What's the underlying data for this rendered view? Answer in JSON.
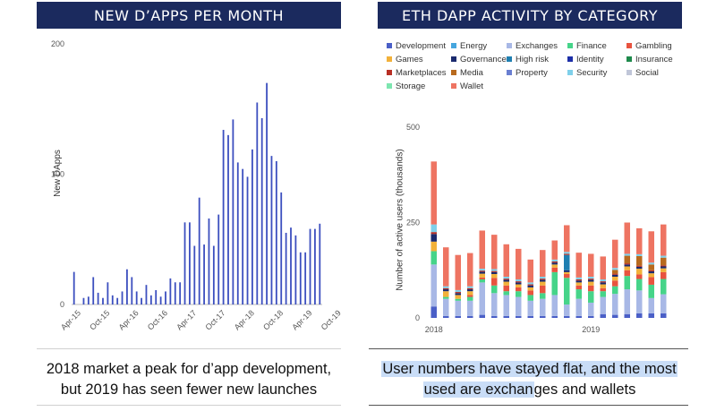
{
  "left_panel": {
    "title": "NEW D’APPS PER MONTH",
    "caption_line1": "2018 market a peak for d’app development,",
    "caption_line2": "but 2019 has seen fewer new launches"
  },
  "right_panel": {
    "title": "ETH DAPP ACTIVITY BY CATEGORY",
    "caption_line1": "User numbers have stayed flat, and the most",
    "caption_line2a": "used are exchan",
    "caption_line2b": "ges and wallets"
  },
  "chart_data": [
    {
      "type": "bar",
      "title": "NEW D’APPS PER MONTH",
      "ylabel": "New DApps",
      "ylim": [
        0,
        200
      ],
      "yticks": [
        0,
        100,
        200
      ],
      "xtick_labels": [
        "Apr-15",
        "Oct-15",
        "Apr-16",
        "Oct-16",
        "Apr-17",
        "Oct-17",
        "Apr-18",
        "Oct-18",
        "Apr-19",
        "Oct-19"
      ],
      "values": [
        25,
        0,
        5,
        6,
        21,
        9,
        5,
        17,
        7,
        5,
        10,
        27,
        21,
        10,
        5,
        15,
        7,
        11,
        6,
        10,
        20,
        17,
        17,
        63,
        63,
        45,
        82,
        46,
        66,
        45,
        69,
        134,
        130,
        142,
        109,
        104,
        98,
        119,
        155,
        143,
        170,
        114,
        110,
        86,
        55,
        59,
        53,
        40,
        40,
        58,
        58,
        62
      ],
      "color": "#3c4fbf"
    },
    {
      "type": "bar",
      "stacked": true,
      "title": "ETH DAPP ACTIVITY BY CATEGORY",
      "ylabel": "Number of active users (thousands)",
      "ylim": [
        0,
        500
      ],
      "yticks": [
        0,
        250,
        500
      ],
      "xtick_labels": [
        "2018",
        "2019"
      ],
      "legend_position": "top",
      "categories_count": 20,
      "series": [
        {
          "name": "Development",
          "color": "#4a5fc7",
          "values": [
            30,
            5,
            5,
            5,
            8,
            5,
            5,
            5,
            5,
            5,
            5,
            5,
            5,
            5,
            10,
            8,
            10,
            12,
            12,
            12
          ]
        },
        {
          "name": "Energy",
          "color": "#46a6de",
          "values": [
            0,
            0,
            0,
            0,
            0,
            0,
            0,
            0,
            0,
            0,
            0,
            0,
            0,
            0,
            0,
            0,
            0,
            0,
            0,
            0
          ]
        },
        {
          "name": "Exchanges",
          "color": "#a8b8e6",
          "values": [
            110,
            45,
            40,
            40,
            85,
            60,
            55,
            50,
            40,
            45,
            55,
            30,
            45,
            35,
            45,
            55,
            65,
            60,
            40,
            50
          ]
        },
        {
          "name": "Finance",
          "color": "#46d489",
          "values": [
            35,
            5,
            5,
            10,
            8,
            20,
            10,
            15,
            15,
            15,
            60,
            70,
            25,
            30,
            15,
            20,
            35,
            30,
            35,
            40
          ]
        },
        {
          "name": "Gambling",
          "color": "#e8533f",
          "values": [
            0,
            0,
            0,
            5,
            5,
            20,
            15,
            10,
            12,
            20,
            12,
            10,
            10,
            15,
            8,
            15,
            15,
            12,
            20,
            18
          ]
        },
        {
          "name": "Games",
          "color": "#f2b13a",
          "values": [
            25,
            15,
            10,
            10,
            10,
            10,
            10,
            8,
            8,
            10,
            8,
            5,
            8,
            10,
            10,
            10,
            10,
            15,
            10,
            10
          ]
        },
        {
          "name": "Governance",
          "color": "#1b2a6e",
          "values": [
            20,
            5,
            5,
            5,
            5,
            5,
            5,
            5,
            5,
            5,
            5,
            5,
            5,
            5,
            5,
            5,
            5,
            5,
            5,
            5
          ]
        },
        {
          "name": "High risk",
          "color": "#1f7fb1",
          "values": [
            0,
            0,
            0,
            0,
            0,
            0,
            0,
            0,
            0,
            0,
            0,
            40,
            0,
            0,
            0,
            0,
            0,
            0,
            0,
            0
          ]
        },
        {
          "name": "Identity",
          "color": "#1d2fa8",
          "values": [
            0,
            0,
            0,
            0,
            0,
            0,
            0,
            0,
            0,
            0,
            0,
            0,
            0,
            0,
            0,
            0,
            0,
            0,
            0,
            0
          ]
        },
        {
          "name": "Insurance",
          "color": "#1f8a4c",
          "values": [
            0,
            0,
            0,
            0,
            0,
            0,
            0,
            0,
            0,
            0,
            0,
            0,
            0,
            0,
            0,
            0,
            0,
            0,
            0,
            0
          ]
        },
        {
          "name": "Marketplaces",
          "color": "#b82f24",
          "values": [
            5,
            3,
            3,
            3,
            3,
            3,
            3,
            3,
            3,
            3,
            3,
            3,
            3,
            3,
            3,
            3,
            3,
            3,
            3,
            3
          ]
        },
        {
          "name": "Media",
          "color": "#b86a1e",
          "values": [
            0,
            0,
            0,
            0,
            0,
            0,
            0,
            0,
            0,
            0,
            0,
            0,
            0,
            0,
            0,
            10,
            20,
            25,
            15,
            20
          ]
        },
        {
          "name": "Property",
          "color": "#6a7fd1",
          "values": [
            0,
            0,
            0,
            0,
            0,
            0,
            0,
            0,
            0,
            0,
            0,
            0,
            0,
            0,
            0,
            0,
            0,
            0,
            0,
            0
          ]
        },
        {
          "name": "Security",
          "color": "#7fd0ea",
          "values": [
            20,
            5,
            5,
            5,
            5,
            5,
            5,
            5,
            5,
            5,
            5,
            5,
            5,
            5,
            5,
            5,
            5,
            5,
            5,
            5
          ]
        },
        {
          "name": "Social",
          "color": "#c0c6d8",
          "values": [
            0,
            0,
            0,
            0,
            0,
            0,
            0,
            0,
            0,
            0,
            0,
            0,
            0,
            0,
            0,
            0,
            0,
            0,
            0,
            0
          ]
        },
        {
          "name": "Storage",
          "color": "#7de6b0",
          "values": [
            0,
            0,
            0,
            0,
            0,
            0,
            0,
            0,
            0,
            0,
            0,
            0,
            0,
            0,
            0,
            0,
            0,
            0,
            0,
            0
          ]
        },
        {
          "name": "Wallet",
          "color": "#ee7462",
          "values": [
            165,
            102,
            92,
            87,
            100,
            90,
            85,
            80,
            60,
            70,
            50,
            70,
            65,
            60,
            60,
            74,
            82,
            68,
            82,
            82
          ]
        }
      ]
    }
  ]
}
